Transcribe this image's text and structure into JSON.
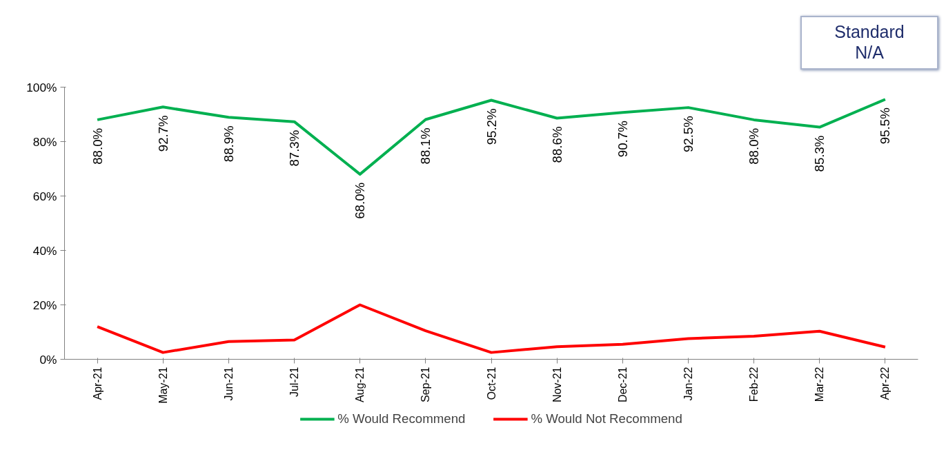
{
  "chart_data": {
    "type": "line",
    "categories": [
      "Apr-21",
      "May-21",
      "Jun-21",
      "Jul-21",
      "Aug-21",
      "Sep-21",
      "Oct-21",
      "Nov-21",
      "Dec-21",
      "Jan-22",
      "Feb-22",
      "Mar-22",
      "Apr-22"
    ],
    "series": [
      {
        "name": "% Would Recommend",
        "color": "#00b050",
        "values": [
          88.0,
          92.7,
          88.9,
          87.3,
          68.0,
          88.1,
          95.2,
          88.6,
          90.7,
          92.5,
          88.0,
          85.3,
          95.5
        ],
        "value_labels": [
          "88.0%",
          "92.7%",
          "88.9%",
          "87.3%",
          "68.0%",
          "88.1%",
          "95.2%",
          "88.6%",
          "90.7%",
          "92.5%",
          "88.0%",
          "85.3%",
          "95.5%"
        ]
      },
      {
        "name": "% Would Not Recommend",
        "color": "#ff0000",
        "values": [
          12.0,
          2.5,
          6.5,
          7.1,
          20.0,
          10.5,
          2.5,
          4.6,
          5.5,
          7.6,
          8.5,
          10.3,
          4.5
        ]
      }
    ],
    "ylim": [
      0,
      100
    ],
    "yticks": [
      {
        "value": 0,
        "label": "0%"
      },
      {
        "value": 20,
        "label": "20%"
      },
      {
        "value": 40,
        "label": "40%"
      },
      {
        "value": 60,
        "label": "60%"
      },
      {
        "value": 80,
        "label": "80%"
      },
      {
        "value": 100,
        "label": "100%"
      }
    ],
    "annotations": [
      "Standard\nN/A"
    ],
    "grid": false,
    "legend": "bottom",
    "marker": "none",
    "line_style": "solid"
  }
}
